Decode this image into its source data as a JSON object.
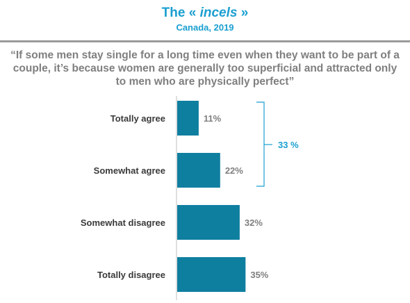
{
  "header": {
    "title_prefix": "The « ",
    "title_italic": "incels",
    "title_suffix": " »",
    "subtitle": "Canada, 2019"
  },
  "quote": "“If some men stay single for a long time even when they want to be part of a couple, it’s because women are generally too superficial and attracted only to men who are physically perfect”",
  "chart_data": {
    "type": "bar",
    "orientation": "horizontal",
    "categories": [
      "Totally agree",
      "Somewhat agree",
      "Somewhat disagree",
      "Totally disagree"
    ],
    "values": [
      11,
      22,
      32,
      35
    ],
    "value_labels": [
      "11%",
      "22%",
      "32%",
      "35%"
    ],
    "unit": "%",
    "bar_color": "#0f7fa0",
    "grid": false,
    "bracket": {
      "label": "33 %",
      "spans": [
        "Totally agree",
        "Somewhat agree"
      ],
      "color": "#1a9fd0"
    }
  }
}
